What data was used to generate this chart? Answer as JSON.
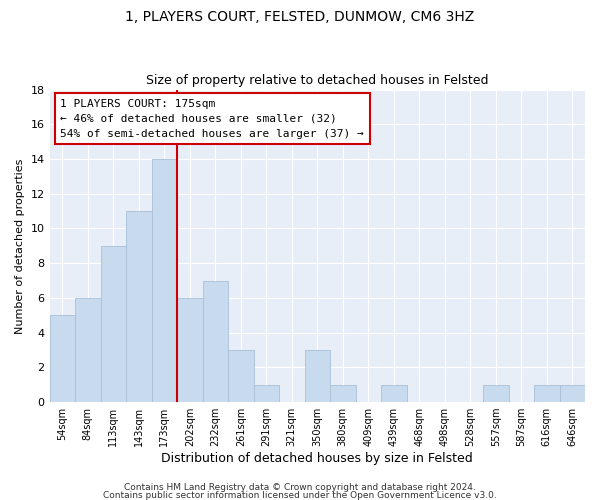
{
  "title": "1, PLAYERS COURT, FELSTED, DUNMOW, CM6 3HZ",
  "subtitle": "Size of property relative to detached houses in Felsted",
  "xlabel": "Distribution of detached houses by size in Felsted",
  "ylabel": "Number of detached properties",
  "footer_line1": "Contains HM Land Registry data © Crown copyright and database right 2024.",
  "footer_line2": "Contains public sector information licensed under the Open Government Licence v3.0.",
  "bar_labels": [
    "54sqm",
    "84sqm",
    "113sqm",
    "143sqm",
    "173sqm",
    "202sqm",
    "232sqm",
    "261sqm",
    "291sqm",
    "321sqm",
    "350sqm",
    "380sqm",
    "409sqm",
    "439sqm",
    "468sqm",
    "498sqm",
    "528sqm",
    "557sqm",
    "587sqm",
    "616sqm",
    "646sqm"
  ],
  "bar_values": [
    5,
    6,
    9,
    11,
    14,
    6,
    7,
    3,
    1,
    0,
    3,
    1,
    0,
    1,
    0,
    0,
    0,
    1,
    0,
    1,
    1
  ],
  "bar_color": "#c8daed",
  "bar_edge_color": "#a8c0d8",
  "vline_x": 4.5,
  "vline_color": "#cc0000",
  "annotation_title": "1 PLAYERS COURT: 175sqm",
  "annotation_line1": "← 46% of detached houses are smaller (32)",
  "annotation_line2": "54% of semi-detached houses are larger (37) →",
  "ylim": [
    0,
    18
  ],
  "yticks": [
    0,
    2,
    4,
    6,
    8,
    10,
    12,
    14,
    16,
    18
  ],
  "background_color": "#ffffff",
  "plot_bg_color": "#e8eef8",
  "title_fontsize": 10,
  "subtitle_fontsize": 9,
  "xlabel_fontsize": 9,
  "ylabel_fontsize": 8,
  "tick_fontsize": 8,
  "xtick_fontsize": 7,
  "annotation_fontsize": 8,
  "footer_fontsize": 6.5
}
